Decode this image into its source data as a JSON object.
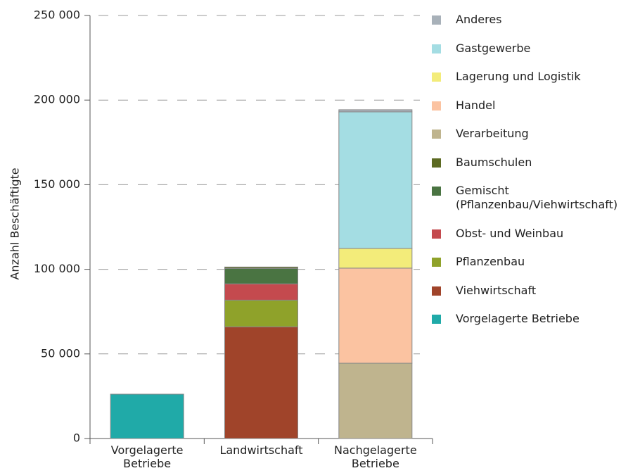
{
  "chart_data": {
    "type": "stacked_bar",
    "y_label": "Anzahl Beschäftigte",
    "categories": [
      "Vorgelagerte Betriebe",
      "Landwirtschaft",
      "Nachgelagerte Betriebe"
    ],
    "series": [
      {
        "name": "Vorgelagerte Betriebe",
        "color": "#20aaa8",
        "values": [
          26200,
          0,
          0
        ]
      },
      {
        "name": "Viehwirtschaft",
        "color": "#a0442a",
        "values": [
          0,
          66000,
          0
        ]
      },
      {
        "name": "Pflanzenbau",
        "color": "#8fa22a",
        "values": [
          0,
          15800,
          0
        ]
      },
      {
        "name": "Obst- und Weinbau",
        "color": "#c44a4e",
        "values": [
          0,
          9600,
          0
        ]
      },
      {
        "name": "Gemischt (Pflanzenbau/Viehwirtschaft)",
        "color": "#4a7442",
        "values": [
          0,
          9150,
          0
        ]
      },
      {
        "name": "Baumschulen",
        "color": "#5c6a22",
        "values": [
          0,
          800,
          0
        ]
      },
      {
        "name": "Verarbeitung",
        "color": "#bfb48e",
        "values": [
          0,
          0,
          44500
        ]
      },
      {
        "name": "Handel",
        "color": "#fbc3a1",
        "values": [
          0,
          0,
          56200
        ]
      },
      {
        "name": "Lagerung und Logistik",
        "color": "#f3ec7a",
        "values": [
          0,
          0,
          11650
        ]
      },
      {
        "name": "Gastgewerbe",
        "color": "#a4dde3",
        "values": [
          0,
          0,
          80700
        ]
      },
      {
        "name": "Anderes",
        "color": "#a8b1b9",
        "values": [
          0,
          0,
          1250
        ]
      }
    ],
    "ylim": [
      0,
      250000
    ],
    "yticks": [
      0,
      {
        "value": 50000,
        "label": "50 000"
      },
      {
        "value": 100000,
        "label": "100 000"
      },
      {
        "value": 150000,
        "label": "150 000"
      },
      {
        "value": 200000,
        "label": "200 000"
      },
      {
        "value": 250000,
        "label": "250 000"
      }
    ],
    "grid": true
  }
}
